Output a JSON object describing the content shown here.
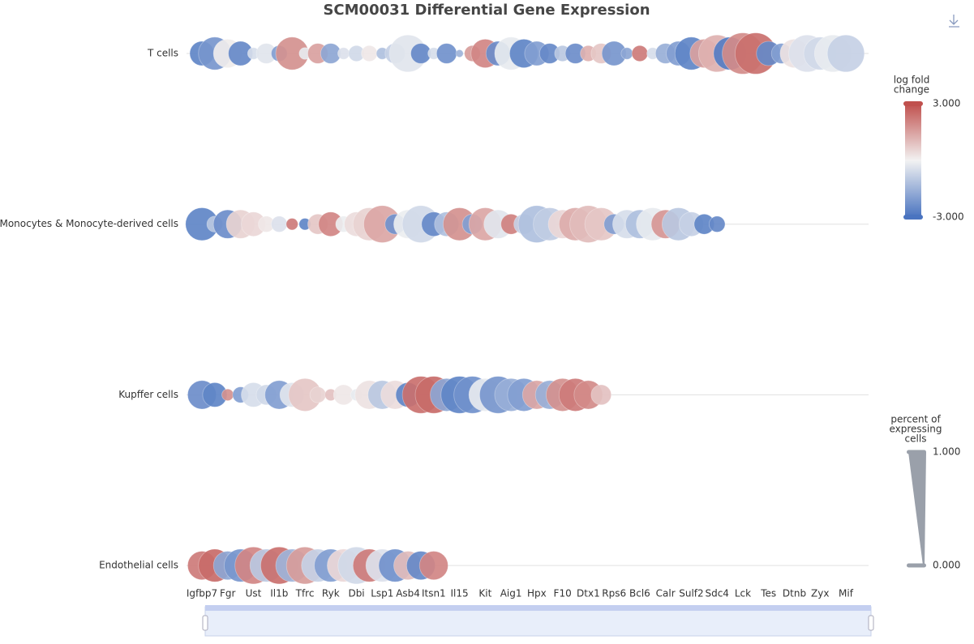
{
  "chart_data": {
    "type": "dotplot",
    "title": "SCM00031 Differential Gene Expression",
    "categories": [
      "Igfbp7",
      null,
      "Fgr",
      null,
      "Ust",
      null,
      "Il1b",
      null,
      "Tfrc",
      null,
      "Ryk",
      null,
      "Dbi",
      null,
      "Lsp1",
      null,
      "Asb4",
      null,
      "Itsn1",
      null,
      "Il15",
      null,
      "Kit",
      null,
      "Aig1",
      null,
      "Hpx",
      null,
      "F10",
      null,
      "Dtx1",
      null,
      "Rps6",
      null,
      "Bcl6",
      null,
      "Calr",
      null,
      "Sulf2",
      null,
      "Sdc4",
      null,
      "Lck",
      null,
      "Tes",
      null,
      "Dtnb",
      null,
      "Zyx",
      null,
      "Mif"
    ],
    "series": [
      {
        "name": "T cells",
        "lfc": [
          -2.6,
          -2.2,
          0.1,
          -2.5,
          -0.5,
          -0.3,
          -2.0,
          1.8,
          -0.2,
          1.5,
          -1.8,
          -0.4,
          -0.6,
          0.2,
          -1.2,
          -0.8,
          -0.3,
          -2.5,
          -0.5,
          -2.3,
          -1.5,
          1.6,
          2.0,
          -2.4,
          -0.2,
          -2.6,
          -2.0,
          -2.5,
          -1.0,
          -2.4,
          1.2,
          0.8,
          -2.2,
          -1.8,
          2.2,
          -0.5,
          -1.6,
          -2.0,
          -2.6,
          1.5,
          1.2,
          -2.8,
          1.9,
          2.4,
          -2.5,
          -2.0,
          0.3,
          -0.4,
          -0.6,
          -0.2,
          -0.8
        ],
        "pct": [
          0.5,
          0.7,
          0.6,
          0.5,
          0.2,
          0.4,
          0.3,
          0.7,
          0.2,
          0.4,
          0.4,
          0.2,
          0.3,
          0.3,
          0.2,
          0.4,
          0.8,
          0.4,
          0.2,
          0.4,
          0.1,
          0.3,
          0.6,
          0.5,
          0.7,
          0.6,
          0.5,
          0.4,
          0.3,
          0.4,
          0.3,
          0.4,
          0.5,
          0.2,
          0.3,
          0.2,
          0.4,
          0.5,
          0.7,
          0.6,
          0.8,
          0.7,
          0.9,
          0.9,
          0.5,
          0.4,
          0.6,
          0.8,
          0.7,
          0.8,
          0.8
        ]
      },
      {
        "name": "Monocytes & Monocyte-derived cells",
        "lfc": [
          -2.6,
          -1.0,
          -2.4,
          0.6,
          0.5,
          0.2,
          -0.4,
          2.2,
          -2.6,
          0.8,
          2.0,
          -0.1,
          0.4,
          0.6,
          1.4,
          -2.3,
          -0.1,
          -0.6,
          -2.5,
          -1.2,
          1.8,
          -2.0,
          1.4,
          -0.3,
          2.1,
          -0.8,
          -1.2,
          -0.9,
          0.5,
          1.3,
          1.0,
          0.8,
          -2.0,
          -0.5,
          -1.2,
          -0.2,
          1.7,
          -1.0,
          -0.8,
          -2.6,
          -2.5,
          null,
          null,
          null,
          null,
          null,
          null,
          null,
          null,
          null,
          null
        ],
        "pct": [
          0.7,
          0.3,
          0.6,
          0.6,
          0.5,
          0.3,
          0.3,
          0.2,
          0.2,
          0.4,
          0.5,
          0.3,
          0.5,
          0.7,
          0.8,
          0.4,
          0.6,
          0.8,
          0.5,
          0.5,
          0.7,
          0.4,
          0.7,
          0.6,
          0.4,
          0.4,
          0.8,
          0.7,
          0.6,
          0.7,
          0.8,
          0.7,
          0.4,
          0.6,
          0.6,
          0.7,
          0.6,
          0.7,
          0.5,
          0.4,
          0.3,
          null,
          null,
          null,
          null,
          null,
          null,
          null,
          null,
          null,
          null
        ]
      },
      {
        "name": "Kupffer cells",
        "lfc": [
          -2.4,
          -2.6,
          1.8,
          -2.0,
          -0.5,
          -0.6,
          -2.0,
          -0.3,
          0.8,
          0.6,
          0.9,
          0.2,
          -0.2,
          0.3,
          -1.0,
          0.4,
          -2.6,
          2.4,
          2.5,
          -1.8,
          -2.6,
          -2.3,
          -0.2,
          -2.2,
          -1.6,
          -2.0,
          1.4,
          -1.6,
          1.8,
          2.2,
          1.9,
          0.9,
          null,
          null,
          null,
          null,
          null,
          null,
          null,
          null,
          null,
          null,
          null,
          null,
          null,
          null,
          null,
          null,
          null,
          null,
          null
        ],
        "pct": [
          0.6,
          0.5,
          0.2,
          0.3,
          0.5,
          0.4,
          0.6,
          0.5,
          0.7,
          0.3,
          0.2,
          0.4,
          0.2,
          0.6,
          0.6,
          0.6,
          0.5,
          0.8,
          0.8,
          0.7,
          0.8,
          0.8,
          0.7,
          0.8,
          0.7,
          0.7,
          0.6,
          0.6,
          0.7,
          0.7,
          0.6,
          0.4,
          null,
          null,
          null,
          null,
          null,
          null,
          null,
          null,
          null,
          null,
          null,
          null,
          null,
          null,
          null,
          null,
          null,
          null,
          null
        ]
      },
      {
        "name": "Endothelial cells",
        "lfc": [
          2.2,
          2.5,
          -1.8,
          -2.2,
          2.0,
          -1.0,
          2.4,
          -1.5,
          1.6,
          -0.8,
          -2.0,
          0.5,
          -0.6,
          2.2,
          -0.4,
          -2.3,
          1.0,
          -2.5,
          2.0,
          null,
          null,
          null,
          null,
          null,
          null,
          null,
          null,
          null,
          null,
          null,
          null,
          null,
          null,
          null,
          null,
          null,
          null,
          null,
          null,
          null,
          null,
          null,
          null,
          null,
          null,
          null,
          null,
          null,
          null,
          null,
          null
        ],
        "pct": [
          0.6,
          0.7,
          0.6,
          0.7,
          0.8,
          0.7,
          0.8,
          0.7,
          0.8,
          0.7,
          0.7,
          0.7,
          0.8,
          0.7,
          0.7,
          0.7,
          0.6,
          0.6,
          0.6,
          null,
          null,
          null,
          null,
          null,
          null,
          null,
          null,
          null,
          null,
          null,
          null,
          null,
          null,
          null,
          null,
          null,
          null,
          null,
          null,
          null,
          null,
          null,
          null,
          null,
          null,
          null,
          null,
          null,
          null,
          null,
          null
        ]
      }
    ],
    "color_legend": {
      "title": [
        "log fold",
        "change"
      ],
      "range": [
        {
          "value": 3,
          "label": "3.000"
        },
        {
          "value": -3,
          "label": "-3.000"
        }
      ],
      "colors": [
        "#4a74c0",
        "#f2f2f2",
        "#c0504d"
      ]
    },
    "size_legend": {
      "title": [
        "percent of",
        "expressing",
        "cells"
      ],
      "range": [
        {
          "value": 1,
          "label": "1.000"
        },
        {
          "value": 0,
          "label": "0.000"
        }
      ],
      "color": "#9aa0aa"
    },
    "grid": true
  }
}
